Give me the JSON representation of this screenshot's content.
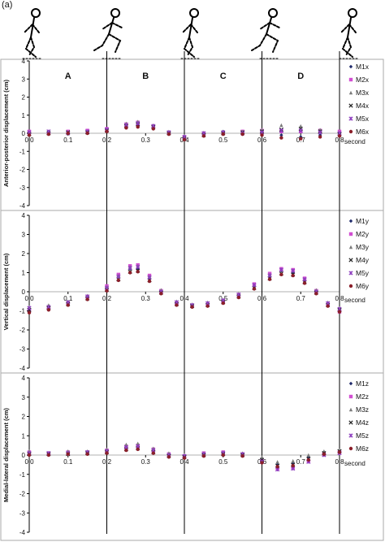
{
  "figure_label": "(a)",
  "phase_labels": [
    "A",
    "B",
    "C",
    "D"
  ],
  "x_unit_label": "second",
  "colors": {
    "series": [
      "#1f2a6b",
      "#d24fd2",
      "#7a7a7a",
      "#222222",
      "#8e3fbf",
      "#8b1f2a"
    ],
    "zero_line": "#999999",
    "phase_line": "#000000",
    "frame": "#aaaaaa"
  },
  "stick_figures": [
    "stance-left",
    "running-push",
    "stance-right",
    "running-extend",
    "stance-left"
  ],
  "chart_data": [
    {
      "type": "scatter",
      "ylabel": "Anterior-posterior displacement (cm)",
      "xlim": [
        0,
        0.8
      ],
      "ylim": [
        -4,
        4
      ],
      "xticks": [
        "0.0",
        "0.1",
        "0.2",
        "0.3",
        "0.4",
        "0.5",
        "0.6",
        "0.7",
        "0.8"
      ],
      "yticks": [
        "4",
        "3",
        "2",
        "1",
        "0",
        "-1",
        "-2",
        "-3",
        "-4"
      ],
      "phase_boundaries": [
        0.2,
        0.4,
        0.6
      ],
      "x": [
        0.0,
        0.05,
        0.1,
        0.15,
        0.2,
        0.25,
        0.28,
        0.32,
        0.36,
        0.4,
        0.45,
        0.5,
        0.55,
        0.6,
        0.65,
        0.7,
        0.75,
        0.8
      ],
      "series": [
        {
          "name": "M1x",
          "values": [
            0.0,
            0.1,
            0.05,
            0.1,
            0.2,
            0.35,
            0.4,
            0.3,
            0.0,
            -0.25,
            -0.05,
            0.1,
            0.05,
            0.0,
            -0.1,
            -0.2,
            -0.1,
            0.0
          ]
        },
        {
          "name": "M2x",
          "values": [
            0.1,
            0.0,
            0.1,
            0.15,
            0.25,
            0.5,
            0.6,
            0.4,
            0.05,
            -0.2,
            0.0,
            0.05,
            0.1,
            0.15,
            0.1,
            0.1,
            0.15,
            0.1
          ]
        },
        {
          "name": "M3x",
          "values": [
            0.0,
            0.05,
            0.0,
            0.1,
            0.2,
            0.55,
            0.65,
            0.45,
            0.1,
            -0.15,
            0.05,
            0.1,
            0.1,
            0.2,
            0.45,
            0.4,
            0.2,
            0.05
          ]
        },
        {
          "name": "M4x",
          "values": [
            -0.05,
            0.0,
            0.05,
            0.05,
            0.15,
            0.4,
            0.5,
            0.35,
            0.0,
            -0.3,
            -0.1,
            0.0,
            0.05,
            0.1,
            0.2,
            0.25,
            0.1,
            -0.05
          ]
        },
        {
          "name": "M5x",
          "values": [
            0.05,
            0.1,
            0.0,
            0.1,
            0.2,
            0.45,
            0.55,
            0.4,
            0.05,
            -0.2,
            0.0,
            0.05,
            0.0,
            0.05,
            0.15,
            0.15,
            0.05,
            0.0
          ]
        },
        {
          "name": "M6x",
          "values": [
            -0.1,
            -0.05,
            0.0,
            0.0,
            0.1,
            0.3,
            0.35,
            0.25,
            -0.05,
            -0.35,
            -0.15,
            -0.05,
            -0.05,
            -0.1,
            -0.25,
            -0.3,
            -0.2,
            -0.15
          ]
        }
      ]
    },
    {
      "type": "scatter",
      "ylabel": "Vertical displacement (cm)",
      "xlim": [
        0,
        0.8
      ],
      "ylim": [
        -4,
        4
      ],
      "xticks": [
        "0.0",
        "0.1",
        "0.2",
        "0.3",
        "0.4",
        "0.5",
        "0.6",
        "0.7",
        "0.8"
      ],
      "yticks": [
        "4",
        "3",
        "2",
        "1",
        "0",
        "-1",
        "-2",
        "-3",
        "-4"
      ],
      "phase_boundaries": [
        0.2,
        0.4,
        0.6
      ],
      "x": [
        0.0,
        0.05,
        0.1,
        0.15,
        0.2,
        0.23,
        0.26,
        0.28,
        0.31,
        0.34,
        0.38,
        0.42,
        0.46,
        0.5,
        0.54,
        0.58,
        0.62,
        0.65,
        0.68,
        0.71,
        0.74,
        0.77,
        0.8
      ],
      "series": [
        {
          "name": "M1y",
          "values": [
            -0.9,
            -0.8,
            -0.6,
            -0.3,
            0.2,
            0.8,
            1.2,
            1.2,
            0.7,
            0.0,
            -0.6,
            -0.7,
            -0.6,
            -0.5,
            -0.2,
            0.3,
            0.8,
            1.1,
            1.0,
            0.6,
            0.0,
            -0.6,
            -0.9
          ]
        },
        {
          "name": "M2y",
          "values": [
            -1.0,
            -0.85,
            -0.6,
            -0.25,
            0.3,
            0.9,
            1.35,
            1.4,
            0.85,
            0.05,
            -0.6,
            -0.75,
            -0.65,
            -0.5,
            -0.15,
            0.4,
            0.95,
            1.2,
            1.15,
            0.7,
            0.05,
            -0.65,
            -1.05
          ]
        },
        {
          "name": "M3y",
          "values": [
            -0.8,
            -0.7,
            -0.5,
            -0.2,
            0.25,
            0.85,
            1.3,
            1.35,
            0.8,
            0.1,
            -0.5,
            -0.65,
            -0.55,
            -0.4,
            -0.1,
            0.35,
            0.9,
            1.15,
            1.1,
            0.65,
            0.1,
            -0.55,
            -0.85
          ]
        },
        {
          "name": "M4y",
          "values": [
            -0.95,
            -0.85,
            -0.65,
            -0.35,
            0.1,
            0.65,
            1.05,
            1.1,
            0.6,
            -0.05,
            -0.65,
            -0.75,
            -0.7,
            -0.55,
            -0.25,
            0.2,
            0.7,
            0.95,
            0.9,
            0.5,
            -0.05,
            -0.7,
            -0.95
          ]
        },
        {
          "name": "M5y",
          "values": [
            -0.85,
            -0.8,
            -0.55,
            -0.25,
            0.2,
            0.8,
            1.25,
            1.3,
            0.75,
            0.0,
            -0.55,
            -0.7,
            -0.6,
            -0.45,
            -0.15,
            0.35,
            0.85,
            1.15,
            1.1,
            0.65,
            0.0,
            -0.6,
            -0.9
          ]
        },
        {
          "name": "M6y",
          "values": [
            -1.1,
            -0.95,
            -0.7,
            -0.4,
            0.05,
            0.6,
            1.0,
            1.05,
            0.55,
            -0.1,
            -0.7,
            -0.8,
            -0.75,
            -0.6,
            -0.3,
            0.15,
            0.65,
            0.9,
            0.85,
            0.45,
            -0.1,
            -0.75,
            -1.05
          ]
        }
      ]
    },
    {
      "type": "scatter",
      "ylabel": "Medial-lateral displacement (cm)",
      "xlim": [
        0,
        0.8
      ],
      "ylim": [
        -4,
        4
      ],
      "xticks": [
        "0.0",
        "0.1",
        "0.2",
        "0.3",
        "0.4",
        "0.5",
        "0.6",
        "0.7",
        "0.8"
      ],
      "yticks": [
        "4",
        "3",
        "2",
        "1",
        "0",
        "-1",
        "-2",
        "-3",
        "-4"
      ],
      "phase_boundaries": [
        0.2,
        0.4,
        0.6
      ],
      "x": [
        0.0,
        0.05,
        0.1,
        0.15,
        0.2,
        0.25,
        0.28,
        0.32,
        0.36,
        0.4,
        0.45,
        0.5,
        0.55,
        0.6,
        0.64,
        0.68,
        0.72,
        0.76,
        0.8
      ],
      "series": [
        {
          "name": "M1z",
          "values": [
            0.1,
            0.05,
            0.1,
            0.1,
            0.2,
            0.35,
            0.4,
            0.2,
            0.0,
            -0.1,
            0.05,
            0.1,
            0.05,
            -0.2,
            -0.5,
            -0.45,
            -0.1,
            0.15,
            0.2
          ]
        },
        {
          "name": "M2z",
          "values": [
            0.15,
            0.1,
            0.15,
            0.15,
            0.25,
            0.45,
            0.5,
            0.3,
            0.05,
            -0.05,
            0.1,
            0.15,
            0.05,
            -0.3,
            -0.7,
            -0.65,
            -0.3,
            0.05,
            0.15
          ]
        },
        {
          "name": "M3z",
          "values": [
            0.2,
            0.1,
            0.2,
            0.2,
            0.3,
            0.55,
            0.6,
            0.35,
            0.1,
            0.0,
            0.1,
            0.15,
            0.1,
            -0.1,
            -0.35,
            -0.3,
            0.0,
            0.2,
            0.25
          ]
        },
        {
          "name": "M4z",
          "values": [
            0.05,
            0.05,
            0.05,
            0.1,
            0.15,
            0.3,
            0.35,
            0.15,
            -0.05,
            -0.1,
            0.0,
            0.05,
            0.0,
            -0.25,
            -0.55,
            -0.5,
            -0.2,
            0.1,
            0.2
          ]
        },
        {
          "name": "M5z",
          "values": [
            0.1,
            0.1,
            0.1,
            0.15,
            0.2,
            0.4,
            0.45,
            0.25,
            0.0,
            -0.05,
            0.05,
            0.1,
            0.05,
            -0.35,
            -0.75,
            -0.7,
            -0.35,
            0.0,
            0.1
          ]
        },
        {
          "name": "M6z",
          "values": [
            0.0,
            0.0,
            0.05,
            0.05,
            0.1,
            0.25,
            0.3,
            0.1,
            -0.1,
            -0.15,
            -0.05,
            0.0,
            -0.05,
            -0.4,
            -0.6,
            -0.55,
            -0.25,
            0.05,
            0.15
          ]
        }
      ]
    }
  ]
}
